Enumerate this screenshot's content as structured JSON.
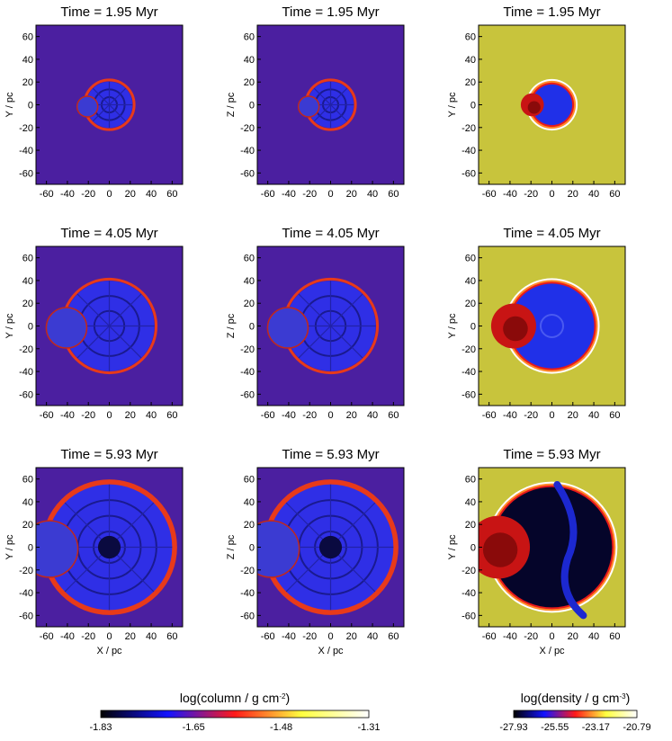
{
  "chart_data": {
    "type": "heatmap",
    "panels": [
      {
        "title": "Time = 1.95 Myr",
        "xlabel": "",
        "ylabel": "Y / pc",
        "quantity": "column",
        "time_myr": 1.95
      },
      {
        "title": "Time = 1.95 Myr",
        "xlabel": "",
        "ylabel": "Z / pc",
        "quantity": "column",
        "time_myr": 1.95
      },
      {
        "title": "Time = 1.95 Myr",
        "xlabel": "",
        "ylabel": "Y / pc",
        "quantity": "density",
        "time_myr": 1.95
      },
      {
        "title": "Time = 4.05 Myr",
        "xlabel": "",
        "ylabel": "Y / pc",
        "quantity": "column",
        "time_myr": 4.05
      },
      {
        "title": "Time = 4.05 Myr",
        "xlabel": "",
        "ylabel": "Z / pc",
        "quantity": "column",
        "time_myr": 4.05
      },
      {
        "title": "Time = 4.05 Myr",
        "xlabel": "",
        "ylabel": "Y / pc",
        "quantity": "density",
        "time_myr": 4.05
      },
      {
        "title": "Time = 5.93 Myr",
        "xlabel": "X / pc",
        "ylabel": "Y / pc",
        "quantity": "column",
        "time_myr": 5.93
      },
      {
        "title": "Time = 5.93 Myr",
        "xlabel": "X / pc",
        "ylabel": "Z / pc",
        "quantity": "column",
        "time_myr": 5.93
      },
      {
        "title": "Time = 5.93 Myr",
        "xlabel": "X / pc",
        "ylabel": "Y / pc",
        "quantity": "density",
        "time_myr": 5.93
      }
    ],
    "x_ticks": [
      "-60",
      "-40",
      "-20",
      "0",
      "20",
      "40",
      "60"
    ],
    "y_ticks": [
      "60",
      "40",
      "20",
      "0",
      "-20",
      "-40",
      "-60"
    ],
    "x_tick_values": [
      -60,
      -40,
      -20,
      0,
      20,
      40,
      60
    ],
    "y_tick_values": [
      60,
      40,
      20,
      0,
      -20,
      -40,
      -60
    ],
    "xlim": [
      -70,
      70
    ],
    "ylim": [
      -70,
      70
    ],
    "bubble_radius_pc": [
      {
        "time_myr": 1.95,
        "radius": 22
      },
      {
        "time_myr": 4.05,
        "radius": 43
      },
      {
        "time_myr": 5.93,
        "radius": 60
      }
    ],
    "colorbars": [
      {
        "label_main": "log(column / g cm",
        "label_sup": "-2",
        "label_close": ")",
        "ticks": [
          "-1.83",
          "-1.65",
          "-1.48",
          "-1.31"
        ],
        "tick_values": [
          -1.83,
          -1.65,
          -1.48,
          -1.31
        ],
        "range": [
          -1.83,
          -1.31
        ],
        "colormap": [
          "#000000",
          "#1414ff",
          "#ff1a1a",
          "#ffff40",
          "#ffffff"
        ]
      },
      {
        "label_main": "log(density / g cm",
        "label_sup": "-3",
        "label_close": ")",
        "ticks": [
          "-27.93",
          "-25.55",
          "-23.17",
          "-20.79"
        ],
        "tick_values": [
          -27.93,
          -25.55,
          -23.17,
          -20.79
        ],
        "range": [
          -27.93,
          -20.79
        ],
        "colormap": [
          "#000000",
          "#1414ff",
          "#ff1a1a",
          "#ffff40",
          "#ffffff"
        ]
      }
    ],
    "colors": {
      "column_background": "#4b1fa0",
      "density_background": "#c8c43c",
      "bubble_interior": "#2f2fe6",
      "shell": "#e83a1a"
    },
    "grid": false,
    "legend": "colorbars at bottom"
  }
}
